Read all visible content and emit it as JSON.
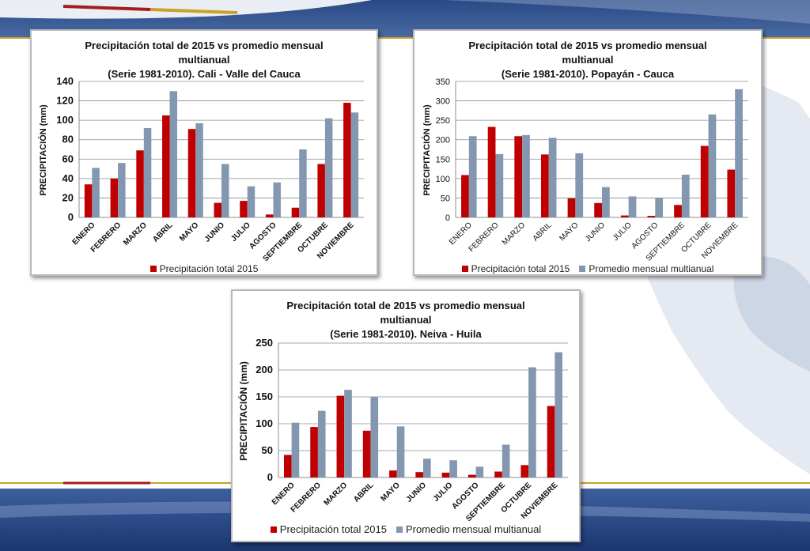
{
  "colors": {
    "rain_2015": "#c00000",
    "multiannual": "#8497b0",
    "band_dark": "#1e3c78",
    "band_mid": "#2f5597",
    "accent_gold": "#c9a227",
    "accent_red": "#a31d1d"
  },
  "chart_data": [
    {
      "type": "bar",
      "title_lines": [
        "Precipitación total de 2015 vs promedio mensual",
        "multianual",
        "(Serie 1981-2010). Cali - Valle del Cauca"
      ],
      "ylabel": "PRECIPITACIÓN (mm)",
      "ylim": [
        0,
        140
      ],
      "yticks": [
        "0",
        "20",
        "40",
        "60",
        "80",
        "100",
        "120",
        "140"
      ],
      "categories": [
        "ENERO",
        "FEBRERO",
        "MARZO",
        "ABRIL",
        "MAYO",
        "JUNIO",
        "JULIO",
        "AGOSTO",
        "SEPTIEMBRE",
        "OCTUBRE",
        "NOVIEMBRE"
      ],
      "category_style": "bold",
      "grid": true,
      "legend_position": "bottom",
      "series": [
        {
          "name": "Precipitación total 2015",
          "values": [
            34,
            40,
            69,
            105,
            91,
            15,
            17,
            3,
            10,
            55,
            118
          ]
        },
        {
          "name": "",
          "values": [
            51,
            56,
            92,
            130,
            97,
            55,
            32,
            36,
            70,
            102,
            108
          ]
        }
      ]
    },
    {
      "type": "bar",
      "title_lines": [
        "Precipitación total de 2015 vs promedio mensual",
        "multianual",
        "(Serie 1981-2010). Popayán - Cauca"
      ],
      "ylabel": "PRECIPITACIÓN (mm)",
      "ylim": [
        0,
        350
      ],
      "yticks": [
        "0",
        "50",
        "100",
        "150",
        "200",
        "250",
        "300",
        "350"
      ],
      "categories": [
        "ENERO",
        "FEBRERO",
        "MARZO",
        "ABRIL",
        "MAYO",
        "JUNIO",
        "JULIO",
        "AGOSTO",
        "SEPTIEMBRE",
        "OCTUBRE",
        "NOVIEMBRE"
      ],
      "category_style": "normal",
      "grid": true,
      "legend_position": "bottom",
      "series": [
        {
          "name": "Precipitación total 2015",
          "values": [
            109,
            233,
            209,
            162,
            49,
            37,
            5,
            4,
            32,
            184,
            123
          ]
        },
        {
          "name": "Promedio mensual multianual",
          "values": [
            209,
            163,
            212,
            205,
            165,
            78,
            54,
            51,
            110,
            265,
            330
          ]
        }
      ]
    },
    {
      "type": "bar",
      "title_lines": [
        "Precipitación total de 2015 vs promedio mensual",
        "multianual",
        "(Serie 1981-2010). Neiva - Huila"
      ],
      "ylabel": "PRECIPITACIÓN (mm)",
      "ylim": [
        0,
        250
      ],
      "yticks": [
        "0",
        "50",
        "100",
        "150",
        "200",
        "250"
      ],
      "categories": [
        "ENERO",
        "FEBRERO",
        "MARZO",
        "ABRIL",
        "MAYO",
        "JUNIO",
        "JULIO",
        "AGOSTO",
        "SEPTIEMBRE",
        "OCTUBRE",
        "NOVIEMBRE"
      ],
      "category_style": "bold",
      "grid": true,
      "legend_position": "bottom",
      "series": [
        {
          "name": "Precipitación total 2015",
          "values": [
            42,
            94,
            152,
            87,
            13,
            10,
            9,
            5,
            11,
            23,
            133
          ]
        },
        {
          "name": "Promedio mensual multianual",
          "values": [
            102,
            124,
            163,
            150,
            95,
            35,
            32,
            20,
            61,
            205,
            233
          ]
        }
      ]
    }
  ]
}
